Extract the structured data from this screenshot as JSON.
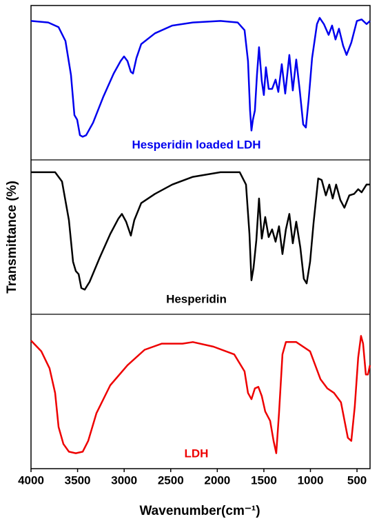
{
  "chart_data": {
    "type": "line",
    "xlabel": "Wavenumber(cm⁻¹)",
    "ylabel": "Transmittance (%)",
    "xlim": [
      4000,
      360
    ],
    "xticks": [
      4000,
      3500,
      3000,
      2500,
      2000,
      1500,
      1000,
      500
    ],
    "ylim": [
      0,
      100
    ],
    "series": [
      {
        "name": "Hesperidin loaded LDH",
        "color": "#0000ee",
        "x": [
          4000,
          3815,
          3704,
          3630,
          3571,
          3534,
          3504,
          3475,
          3445,
          3408,
          3334,
          3223,
          3112,
          3038,
          3001,
          2964,
          2928,
          2905,
          2868,
          2817,
          2669,
          2484,
          2262,
          1966,
          1781,
          1707,
          1670,
          1648,
          1633,
          1618,
          1596,
          1574,
          1552,
          1522,
          1500,
          1478,
          1448,
          1411,
          1374,
          1345,
          1308,
          1271,
          1226,
          1189,
          1152,
          1115,
          1078,
          1049,
          1019,
          982,
          930,
          901,
          856,
          805,
          768,
          731,
          694,
          649,
          612,
          561,
          501,
          450,
          398,
          361
        ],
        "values": [
          90,
          89,
          86,
          77,
          55,
          29,
          26,
          16,
          15,
          16,
          24,
          41,
          56,
          64,
          67,
          64,
          57,
          56,
          66,
          75,
          82,
          87,
          89,
          90,
          89,
          84,
          64,
          32,
          19,
          26,
          32,
          55,
          73,
          51,
          42,
          60,
          46,
          46,
          52,
          44,
          62,
          43,
          68,
          45,
          65,
          45,
          23,
          21,
          39,
          66,
          88,
          92,
          88,
          81,
          87,
          78,
          85,
          74,
          68,
          76,
          90,
          91,
          88,
          90
        ]
      },
      {
        "name": "Hesperidin",
        "color": "#000000",
        "x": [
          4000,
          3741,
          3667,
          3593,
          3549,
          3519,
          3489,
          3460,
          3423,
          3371,
          3260,
          3149,
          3061,
          3024,
          2979,
          2928,
          2891,
          2817,
          2669,
          2484,
          2262,
          1966,
          1759,
          1692,
          1655,
          1633,
          1611,
          1581,
          1552,
          1522,
          1485,
          1448,
          1411,
          1374,
          1337,
          1300,
          1263,
          1226,
          1189,
          1152,
          1108,
          1071,
          1041,
          1004,
          967,
          916,
          879,
          834,
          797,
          761,
          724,
          679,
          635,
          583,
          531,
          487,
          450,
          398,
          361
        ],
        "values": [
          92,
          92,
          86,
          61,
          34,
          28,
          26,
          17,
          16,
          21,
          37,
          52,
          62,
          65,
          60,
          51,
          61,
          72,
          78,
          84,
          89,
          92,
          92,
          84,
          52,
          22,
          30,
          48,
          75,
          49,
          63,
          50,
          55,
          47,
          57,
          39,
          55,
          65,
          46,
          60,
          43,
          23,
          20,
          34,
          59,
          88,
          87,
          77,
          84,
          75,
          84,
          74,
          69,
          77,
          78,
          81,
          79,
          84,
          84
        ]
      },
      {
        "name": "LDH",
        "color": "#ee0000",
        "x": [
          4000,
          3889,
          3801,
          3741,
          3704,
          3652,
          3593,
          3519,
          3445,
          3386,
          3297,
          3149,
          2964,
          2780,
          2595,
          2373,
          2262,
          2041,
          1818,
          1707,
          1670,
          1633,
          1596,
          1559,
          1522,
          1485,
          1433,
          1396,
          1367,
          1337,
          1300,
          1263,
          1152,
          1004,
          893,
          819,
          746,
          672,
          598,
          561,
          524,
          487,
          457,
          435,
          405,
          383,
          361
        ],
        "values": [
          83,
          76,
          65,
          49,
          27,
          16,
          11,
          10,
          11,
          18,
          36,
          54,
          67,
          77,
          81,
          81,
          82,
          79,
          74,
          63,
          49,
          45,
          52,
          53,
          47,
          37,
          31,
          18,
          10,
          36,
          74,
          82,
          82,
          76,
          58,
          52,
          49,
          43,
          20,
          18,
          40,
          72,
          86,
          81,
          61,
          61,
          67
        ]
      }
    ]
  }
}
